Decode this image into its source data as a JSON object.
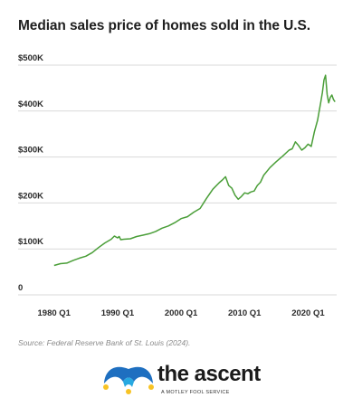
{
  "title": "Median sales price of homes sold in the U.S.",
  "source": "Source: Federal Reserve Bank of St. Louis (2024).",
  "brand": {
    "name": "the ascent",
    "tagline": "A MOTLEY FOOL SERVICE",
    "logo_icon": "jester-hat-logo",
    "colors": {
      "blue": "#1e6fc0",
      "light_blue": "#27a9e1",
      "yellow": "#f7c325"
    }
  },
  "colors": {
    "line": "#4a9e38",
    "grid": "#d9d9d9"
  },
  "chart_data": {
    "type": "line",
    "title": "Median sales price of homes sold in the U.S.",
    "xlabel": "",
    "ylabel": "",
    "xlim": [
      1979.75,
      2024.5
    ],
    "ylim": [
      0,
      500000
    ],
    "grid": true,
    "y_ticks": [
      {
        "value": 0,
        "label": "0"
      },
      {
        "value": 100000,
        "label": "$100K"
      },
      {
        "value": 200000,
        "label": "$200K"
      },
      {
        "value": 300000,
        "label": "$300K"
      },
      {
        "value": 400000,
        "label": "$400K"
      },
      {
        "value": 500000,
        "label": "$500K"
      }
    ],
    "x_ticks": [
      {
        "value": 1980,
        "label": "1980 Q1"
      },
      {
        "value": 1990,
        "label": "1990 Q1"
      },
      {
        "value": 2000,
        "label": "2000 Q1"
      },
      {
        "value": 2010,
        "label": "2010 Q1"
      },
      {
        "value": 2020,
        "label": "2020 Q1"
      }
    ],
    "series": [
      {
        "x": [
          1980,
          1981,
          1982,
          1983,
          1984,
          1985,
          1986,
          1987,
          1988,
          1989,
          1989.5,
          1990,
          1990.25,
          1990.5,
          1991,
          1992,
          1993,
          1994,
          1995,
          1996,
          1997,
          1998,
          1999,
          2000,
          2001,
          2002,
          2003,
          2004,
          2005,
          2006,
          2006.5,
          2007,
          2007.5,
          2008,
          2008.5,
          2009,
          2009.5,
          2010,
          2010.5,
          2011,
          2011.5,
          2012,
          2012.5,
          2013,
          2014,
          2015,
          2016,
          2017,
          2017.5,
          2018,
          2018.5,
          2019,
          2019.5,
          2020,
          2020.5,
          2021,
          2021.5,
          2022,
          2022.25,
          2022.5,
          2022.75,
          2023,
          2023.25,
          2023.5,
          2023.75,
          2024,
          2024.25
        ],
        "values": [
          64000,
          68000,
          69000,
          75000,
          80000,
          84000,
          92000,
          103000,
          113000,
          121000,
          128000,
          124000,
          127000,
          120000,
          121000,
          122000,
          127000,
          130000,
          133000,
          138000,
          145000,
          150000,
          157000,
          166000,
          170000,
          180000,
          188000,
          210000,
          230000,
          244000,
          250000,
          257000,
          238000,
          232000,
          217000,
          208000,
          214000,
          222000,
          220000,
          224000,
          226000,
          238000,
          245000,
          260000,
          277000,
          290000,
          302000,
          315000,
          318000,
          333000,
          325000,
          315000,
          320000,
          328000,
          323000,
          355000,
          380000,
          420000,
          440000,
          468000,
          478000,
          436000,
          418000,
          430000,
          435000,
          425000,
          420000
        ]
      }
    ]
  }
}
